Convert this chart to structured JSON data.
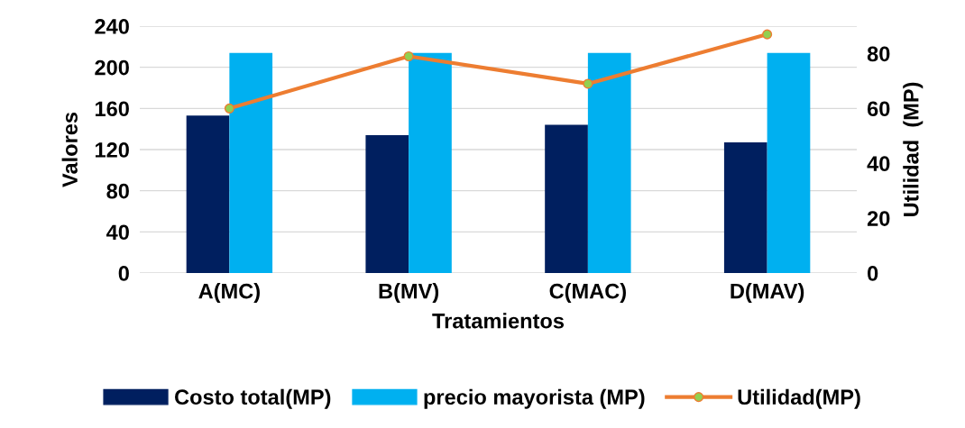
{
  "chart_data": {
    "type": "bar",
    "xlabel": "Tratamientos",
    "ylabel": "Valores",
    "y2label": "Utilidad  (MP)",
    "categories": [
      "A(MC)",
      "B(MV)",
      "C(MAC)",
      "D(MAV)"
    ],
    "series": [
      {
        "name": "Costo total(MP)",
        "color": "#001f5f",
        "values": [
          153,
          134,
          144,
          127
        ]
      },
      {
        "name": "precio mayorista (MP)",
        "color": "#00b0f0",
        "values": [
          214,
          214,
          214,
          214
        ]
      },
      {
        "name": "Utilidad(MP)",
        "type": "line",
        "axis": "y2",
        "color": "#ed7d31",
        "marker": "circle",
        "values": [
          60,
          79,
          69,
          87
        ]
      }
    ],
    "ylim": [
      0,
      240
    ],
    "yticks": [
      0,
      40,
      80,
      120,
      160,
      200,
      240
    ],
    "y2lim": [
      0,
      90
    ],
    "y2ticks": [
      0,
      20,
      40,
      60,
      80
    ],
    "grid": "y",
    "legend": "bottom"
  }
}
